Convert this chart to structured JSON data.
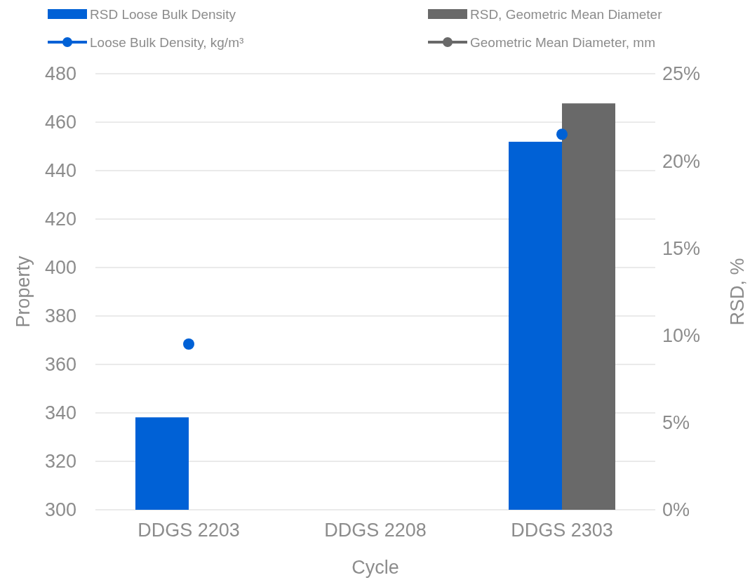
{
  "chart_data": {
    "type": "bar",
    "xlabel": "Cycle",
    "ylabel": "Property",
    "y2label": "RSD, %",
    "categories": [
      "DDGS 2203",
      "DDGS 2208",
      "DDGS 2303"
    ],
    "series": [
      {
        "name": "RSD Loose Bulk Density",
        "axis": "y2",
        "color": "#0061d6",
        "values": [
          5.3,
          null,
          21.1
        ]
      },
      {
        "name": "RSD, Geometric Mean Diameter",
        "axis": "y2",
        "color": "#696969",
        "values": [
          null,
          null,
          23.3
        ]
      },
      {
        "name": "Loose Bulk Density, kg/m³",
        "type": "scatter",
        "axis": "y",
        "color": "#0061d6",
        "marker": "circle",
        "values": [
          368.4,
          null,
          455
        ]
      },
      {
        "name": "Geometric Mean Diameter, mm",
        "type": "scatter",
        "axis": "y",
        "color": "#696969",
        "marker": "circle",
        "values": [
          null,
          null,
          null
        ]
      }
    ],
    "ylim": [
      300,
      480
    ],
    "yticks": [
      300,
      320,
      340,
      360,
      380,
      400,
      420,
      440,
      460,
      480
    ],
    "y2lim": [
      0,
      25
    ],
    "y2ticks": [
      {
        "value": 0,
        "label": "0%"
      },
      {
        "value": 5,
        "label": "5%"
      },
      {
        "value": 10,
        "label": "10%"
      },
      {
        "value": 15,
        "label": "15%"
      },
      {
        "value": 20,
        "label": "20%"
      },
      {
        "value": 25,
        "label": "25%"
      }
    ],
    "grid": "y",
    "legend": "top"
  }
}
